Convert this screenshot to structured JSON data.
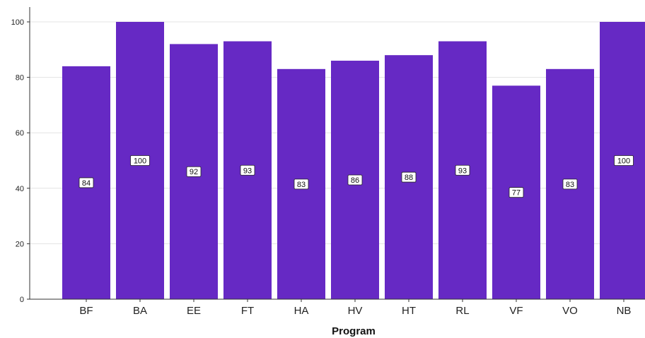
{
  "chart_data": {
    "type": "bar",
    "categories": [
      "BF",
      "BA",
      "EE",
      "FT",
      "HA",
      "HV",
      "HT",
      "RL",
      "VF",
      "VO",
      "NB"
    ],
    "values": [
      84,
      100,
      92,
      93,
      83,
      86,
      88,
      93,
      77,
      83,
      100
    ],
    "data_labels": [
      "84",
      "100",
      "92",
      "93",
      "83",
      "86",
      "88",
      "93",
      "77",
      "83",
      "100"
    ],
    "xlabel": "Program",
    "ylabel": "",
    "ylim": [
      0,
      100
    ],
    "yticks": [
      0,
      20,
      40,
      60,
      80,
      100
    ],
    "grid": true,
    "bar_color": "#6629c4"
  }
}
